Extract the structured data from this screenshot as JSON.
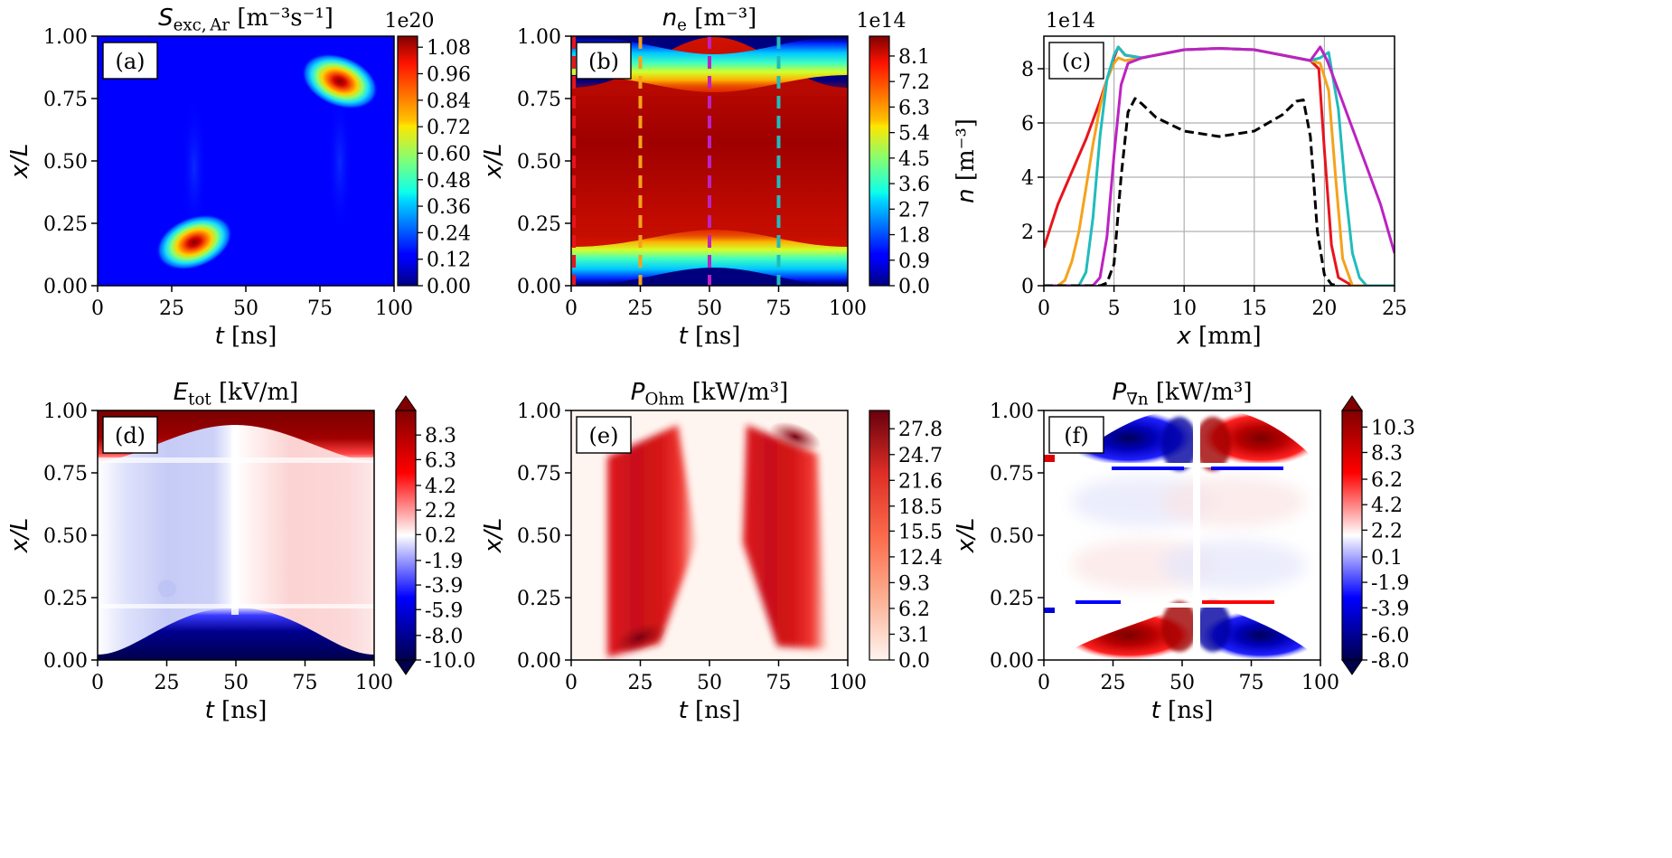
{
  "figure": {
    "panels": {
      "a": {
        "letter": "(a)",
        "title": {
          "sym": "S",
          "sub": "exc, Ar",
          "unit": " [m⁻³s⁻¹]"
        },
        "xlabel": {
          "sym": "t",
          "unit": " [ns]"
        },
        "ylabel": {
          "sym": "x/L"
        },
        "cbar_exp": "1e20"
      },
      "b": {
        "letter": "(b)",
        "title": {
          "sym": "n",
          "sub": "e",
          "unit": " [m⁻³]"
        },
        "xlabel": {
          "sym": "t",
          "unit": " [ns]"
        },
        "ylabel": {
          "sym": "x/L"
        },
        "cbar_exp": "1e14"
      },
      "c": {
        "letter": "(c)",
        "xlabel": {
          "sym": "x",
          "unit": " [mm]"
        },
        "ylabel": {
          "sym": "n",
          "unit": " [m⁻³]"
        },
        "y_exp": "1e14"
      },
      "d": {
        "letter": "(d)",
        "title": {
          "sym": "E",
          "sub": "tot",
          "unit": " [kV/m]"
        },
        "xlabel": {
          "sym": "t",
          "unit": " [ns]"
        },
        "ylabel": {
          "sym": "x/L"
        }
      },
      "e": {
        "letter": "(e)",
        "title": {
          "sym": "P",
          "sub": "Ohm",
          "unit": " [kW/m³]"
        },
        "xlabel": {
          "sym": "t",
          "unit": " [ns]"
        },
        "ylabel": {
          "sym": "x/L"
        }
      },
      "f": {
        "letter": "(f)",
        "title": {
          "sym": "P",
          "sub": "∇n",
          "unit": " [kW/m³]"
        },
        "xlabel": {
          "sym": "t",
          "unit": " [ns]"
        },
        "ylabel": {
          "sym": "x/L"
        }
      }
    }
  },
  "chart_data": [
    {
      "panel": "a",
      "type": "heatmap",
      "x_ticks": [
        "0",
        "25",
        "50",
        "75",
        "100"
      ],
      "y_ticks": [
        "0.00",
        "0.25",
        "0.50",
        "0.75",
        "1.00"
      ],
      "xlim": [
        0,
        100
      ],
      "ylim": [
        0,
        1
      ],
      "colormap": "jet",
      "colorbar_ticks": [
        "0.00",
        "0.12",
        "0.24",
        "0.36",
        "0.48",
        "0.60",
        "0.72",
        "0.84",
        "0.96",
        "1.08"
      ],
      "colorbar_range": [
        0,
        1.13
      ],
      "features": [
        {
          "t": 33,
          "x_over_L": 0.18,
          "value": 1.13
        },
        {
          "t": 82,
          "x_over_L": 0.82,
          "value": 1.13
        }
      ]
    },
    {
      "panel": "b",
      "type": "heatmap",
      "x_ticks": [
        "0",
        "25",
        "50",
        "75",
        "100"
      ],
      "y_ticks": [
        "0.00",
        "0.25",
        "0.50",
        "0.75",
        "1.00"
      ],
      "xlim": [
        0,
        100
      ],
      "ylim": [
        0,
        1
      ],
      "colormap": "jet",
      "colorbar_ticks": [
        "0.0",
        "0.9",
        "1.8",
        "2.7",
        "3.6",
        "4.5",
        "5.4",
        "6.3",
        "7.2",
        "8.1"
      ],
      "colorbar_range": [
        0,
        8.8
      ],
      "vlines": [
        {
          "t": 1,
          "color": "#e8141c"
        },
        {
          "t": 25,
          "color": "#f5a21a"
        },
        {
          "t": 50,
          "color": "#bc22c2"
        },
        {
          "t": 75,
          "color": "#20bcbc"
        }
      ]
    },
    {
      "panel": "c",
      "type": "line",
      "x_ticks": [
        "0",
        "5",
        "10",
        "15",
        "20",
        "25"
      ],
      "y_ticks": [
        "0",
        "2",
        "4",
        "6",
        "8"
      ],
      "xlim": [
        0,
        25
      ],
      "ylim": [
        0,
        9.2
      ],
      "grid": true,
      "x_line_max": 25,
      "series": [
        {
          "color": "#e8141c",
          "dash": false,
          "x": [
            0,
            1,
            2,
            3,
            4,
            5,
            5.3,
            5.8,
            7,
            10,
            12.5,
            15,
            18,
            19,
            19.6,
            20,
            20.5,
            21,
            22
          ],
          "y": [
            1.4,
            3.0,
            4.2,
            5.4,
            6.8,
            8.4,
            8.8,
            8.5,
            8.4,
            8.7,
            8.75,
            8.7,
            8.4,
            8.3,
            8.0,
            5.0,
            1.5,
            0.3,
            0
          ]
        },
        {
          "color": "#f5a21a",
          "dash": false,
          "x": [
            0,
            1,
            1.5,
            2,
            2.5,
            3,
            3.5,
            4,
            4.5,
            5,
            5.3,
            5.8,
            7,
            10,
            12.5,
            15,
            18,
            19,
            19.7,
            20.3,
            20.8,
            21.3,
            22,
            25
          ],
          "y": [
            0,
            0,
            0.2,
            0.9,
            2.0,
            3.6,
            5.2,
            6.6,
            7.6,
            8.2,
            8.4,
            8.3,
            8.4,
            8.7,
            8.75,
            8.7,
            8.4,
            8.3,
            8.2,
            7.2,
            4.0,
            1.0,
            0,
            0
          ]
        },
        {
          "color": "#20bcbc",
          "dash": false,
          "x": [
            0,
            2.5,
            3,
            3.5,
            4,
            4.5,
            5,
            5.3,
            5.8,
            7,
            10,
            12.5,
            15,
            18,
            19,
            19.7,
            20.3,
            21,
            21.5,
            22,
            22.5,
            23,
            25
          ],
          "y": [
            0,
            0,
            0.5,
            2.5,
            5.5,
            7.6,
            8.5,
            8.8,
            8.5,
            8.4,
            8.7,
            8.75,
            8.7,
            8.4,
            8.3,
            8.4,
            8.6,
            6.5,
            3.5,
            1.2,
            0.3,
            0,
            0
          ]
        },
        {
          "color": "#bc22c2",
          "dash": false,
          "x": [
            0,
            3.5,
            4,
            4.5,
            5,
            5.5,
            6,
            7,
            10,
            12.5,
            15,
            18,
            19,
            19.7,
            20.2,
            21,
            22,
            23,
            24,
            25
          ],
          "y": [
            0,
            0,
            0.3,
            1.8,
            4.8,
            7.4,
            8.2,
            8.4,
            8.7,
            8.75,
            8.7,
            8.4,
            8.3,
            8.8,
            8.3,
            7.2,
            5.8,
            4.4,
            3.0,
            1.2
          ]
        },
        {
          "color": "#000000",
          "dash": true,
          "x": [
            0,
            4,
            4.5,
            5,
            5.5,
            6,
            6.5,
            7,
            8,
            10,
            12.5,
            15,
            17,
            18,
            18.5,
            19,
            19.5,
            20,
            20.5,
            21
          ],
          "y": [
            0,
            0,
            0.1,
            0.8,
            4.0,
            6.4,
            6.9,
            6.7,
            6.2,
            5.7,
            5.5,
            5.7,
            6.3,
            6.8,
            6.85,
            5.5,
            2.0,
            0.4,
            0.05,
            0
          ]
        }
      ]
    },
    {
      "panel": "d",
      "type": "heatmap",
      "x_ticks": [
        "0",
        "25",
        "50",
        "75",
        "100"
      ],
      "y_ticks": [
        "0.00",
        "0.25",
        "0.50",
        "0.75",
        "1.00"
      ],
      "xlim": [
        0,
        100
      ],
      "ylim": [
        0,
        1
      ],
      "colormap": "seismic",
      "colorbar_extend": "both",
      "colorbar_ticks": [
        "-10.0",
        "-8.0",
        "-5.9",
        "-3.9",
        "-1.9",
        "0.2",
        "2.2",
        "4.2",
        "6.3",
        "8.3"
      ],
      "colorbar_range": [
        -10.0,
        10.3
      ]
    },
    {
      "panel": "e",
      "type": "heatmap",
      "x_ticks": [
        "0",
        "25",
        "50",
        "75",
        "100"
      ],
      "y_ticks": [
        "0.00",
        "0.25",
        "0.50",
        "0.75",
        "1.00"
      ],
      "xlim": [
        0,
        100
      ],
      "ylim": [
        0,
        1
      ],
      "colormap": "Reds",
      "colorbar_ticks": [
        "0.0",
        "3.1",
        "6.2",
        "9.3",
        "12.4",
        "15.5",
        "18.5",
        "21.6",
        "24.7",
        "27.8"
      ],
      "colorbar_range": [
        0,
        30.0
      ]
    },
    {
      "panel": "f",
      "type": "heatmap",
      "x_ticks": [
        "0",
        "25",
        "50",
        "75",
        "100"
      ],
      "y_ticks": [
        "0.00",
        "0.25",
        "0.50",
        "0.75",
        "1.00"
      ],
      "xlim": [
        0,
        100
      ],
      "ylim": [
        0,
        1
      ],
      "colormap": "seismic",
      "colorbar_extend": "both",
      "colorbar_ticks": [
        "-8.0",
        "-6.0",
        "-3.9",
        "-1.9",
        "0.1",
        "2.2",
        "4.2",
        "6.2",
        "8.3",
        "10.3"
      ],
      "colorbar_range": [
        -8.0,
        11.6
      ]
    }
  ]
}
